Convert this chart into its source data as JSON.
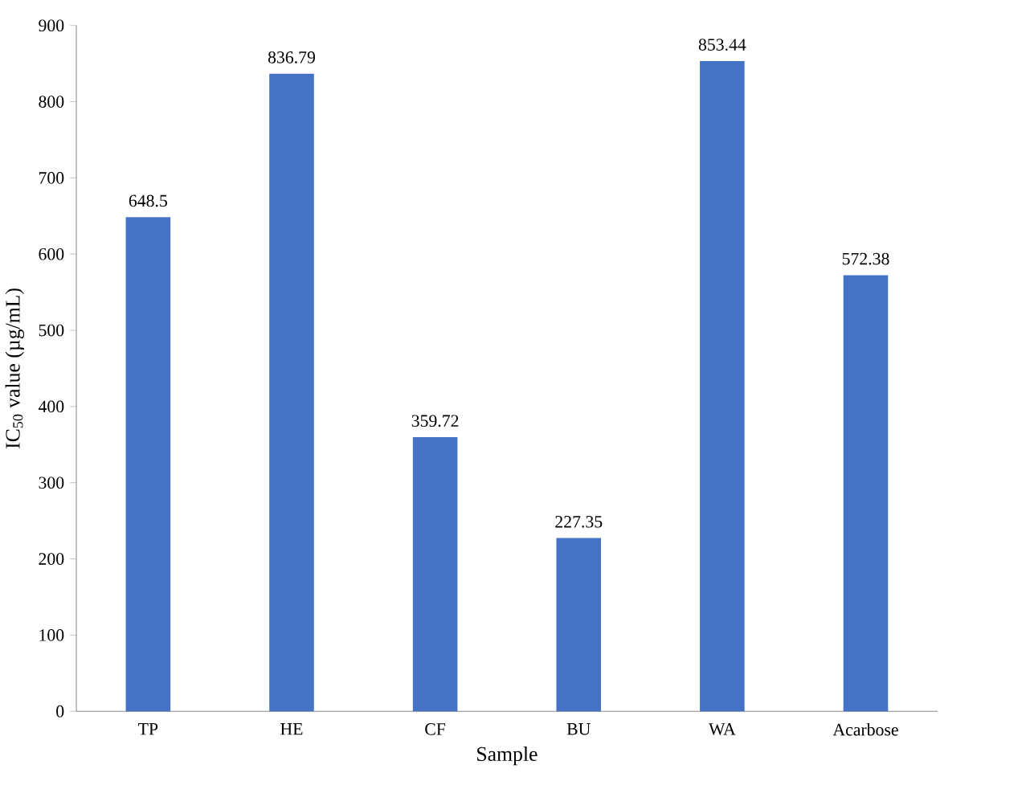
{
  "chart_data": {
    "type": "bar",
    "xlabel": "Sample",
    "ylabel": "IC$_{50}$ value (µg/mL)",
    "categories": [
      "TP",
      "HE",
      "CF",
      "BU",
      "WA",
      "Acarbose"
    ],
    "values": [
      648.5,
      836.79,
      359.72,
      227.35,
      853.44,
      572.38
    ],
    "color": "#4472c4",
    "ylim": [
      0,
      900
    ],
    "yticks": [
      0,
      100,
      200,
      300,
      400,
      500,
      600,
      700,
      800,
      900
    ],
    "data_labels": true
  }
}
